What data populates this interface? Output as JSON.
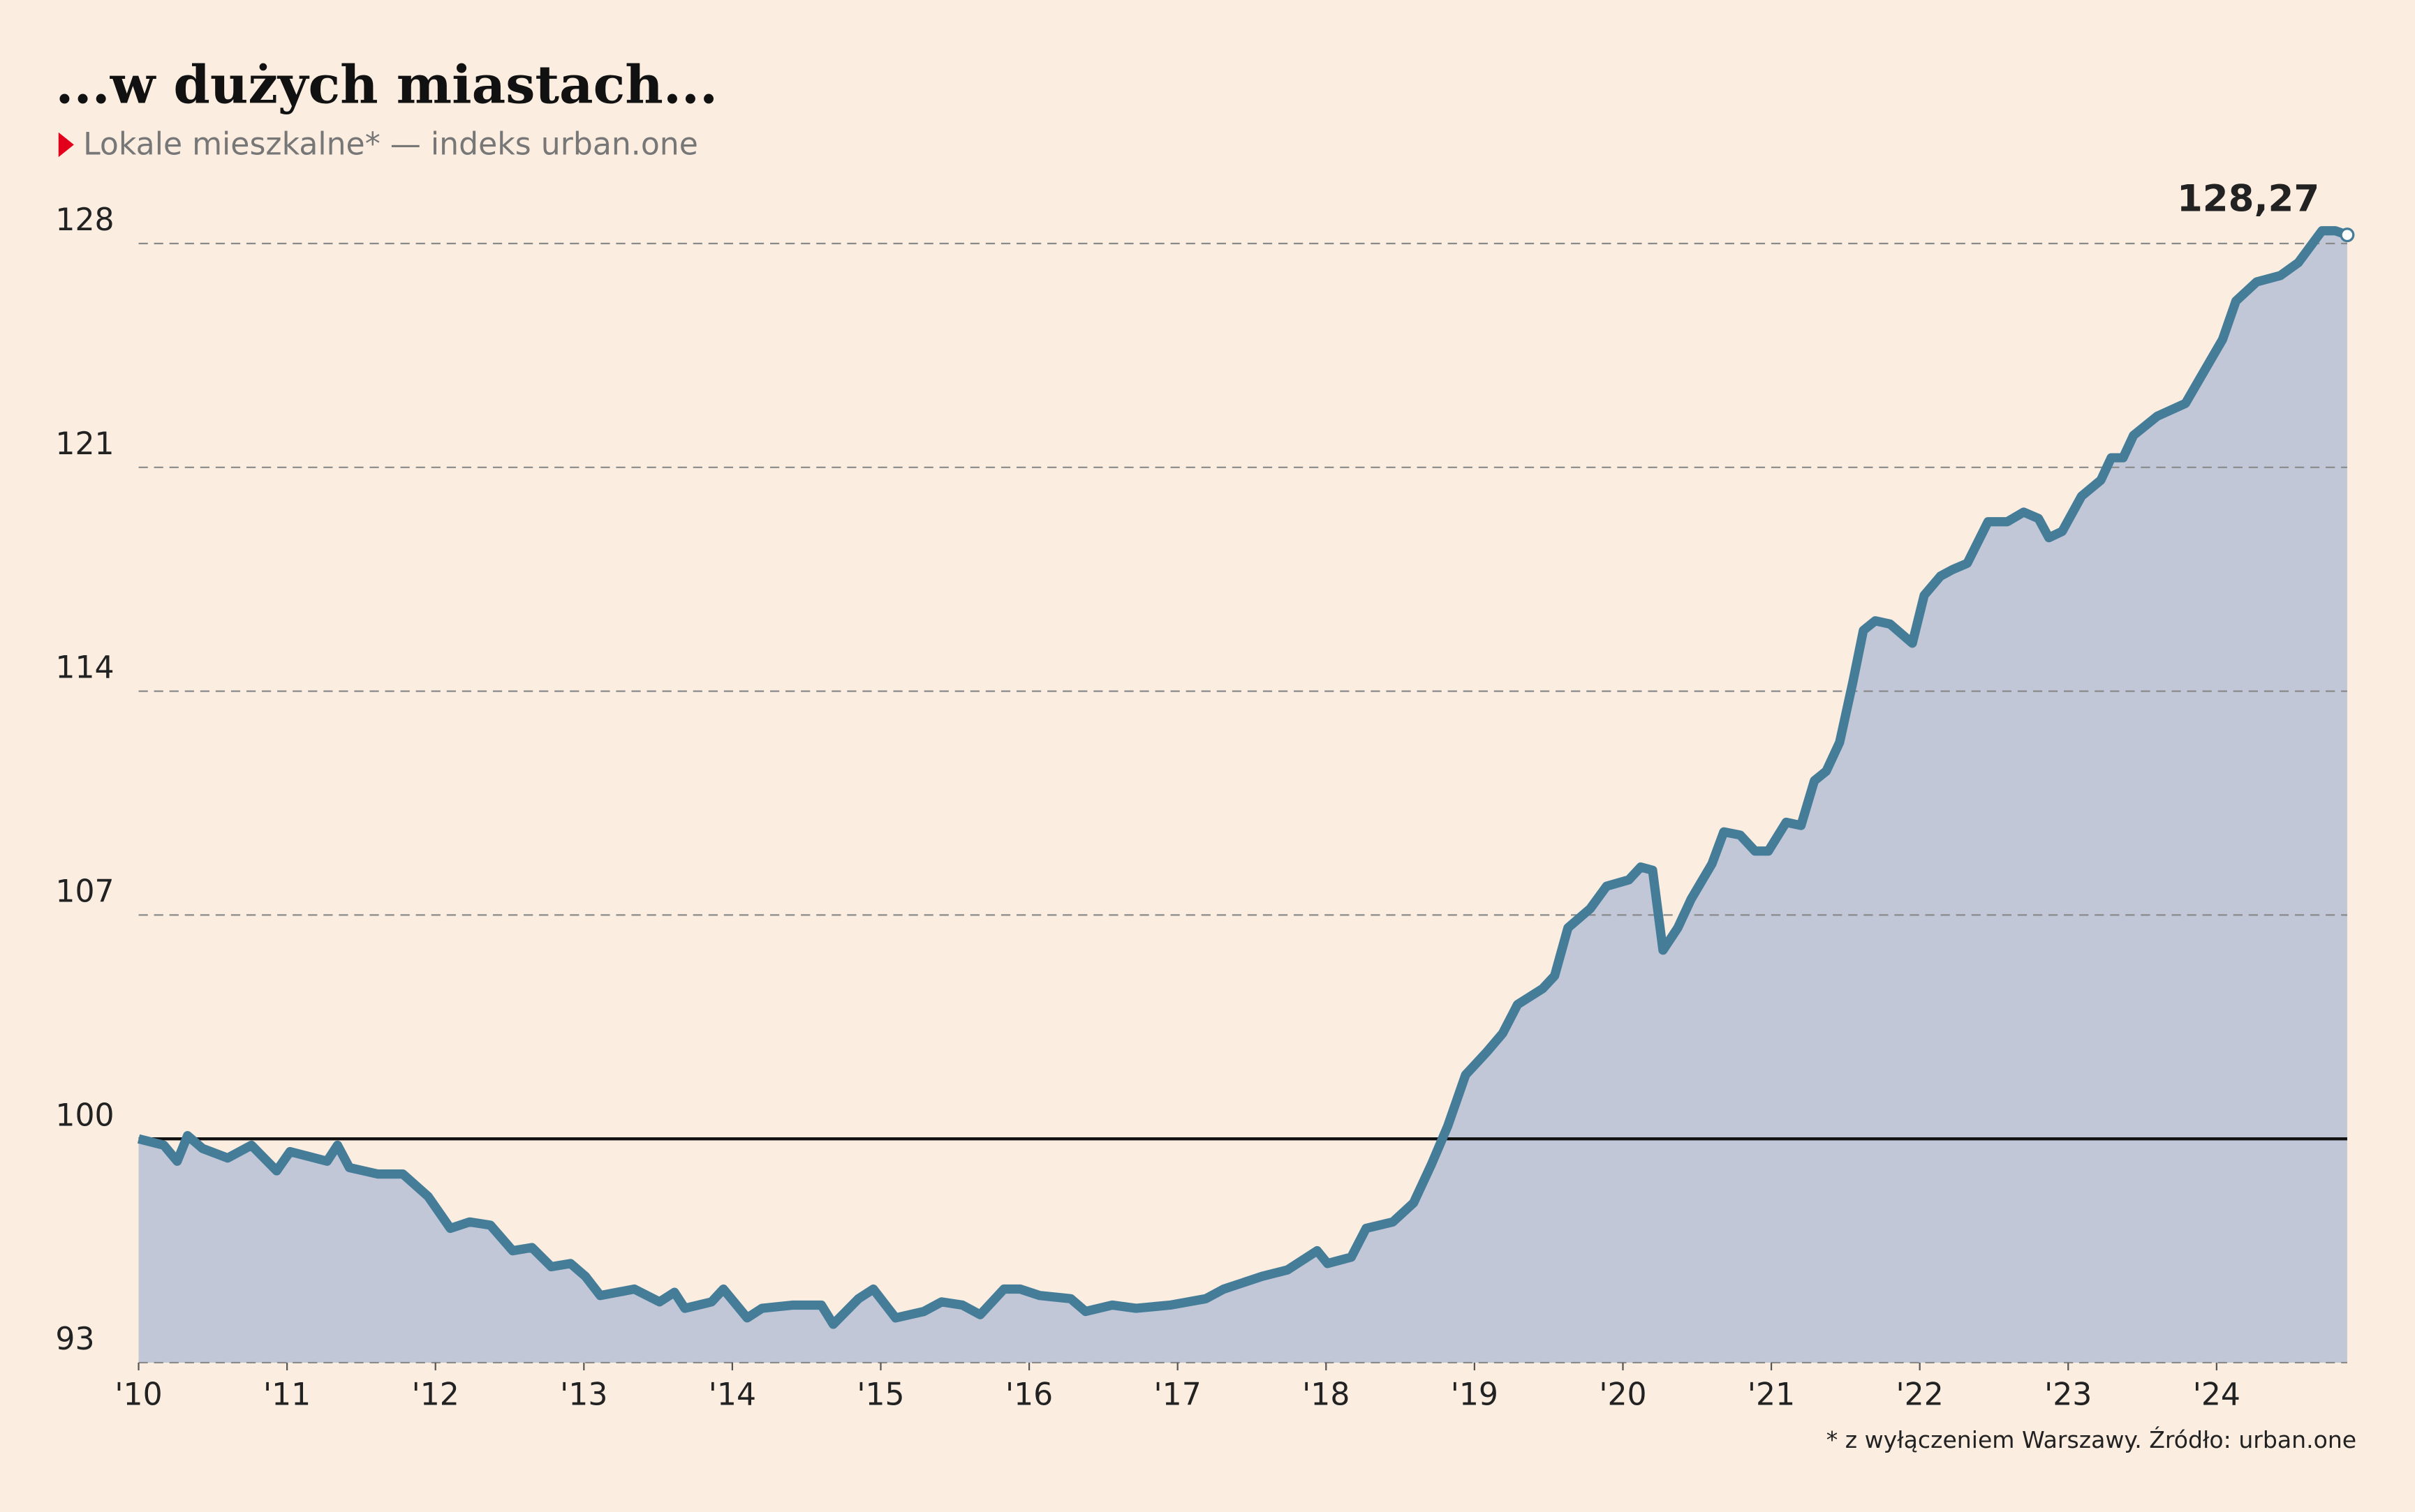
{
  "chart_data": {
    "type": "area-line",
    "title": "...w dużych miastach...",
    "subtitle": "Lokale mieszkalne* — indeks urban.one",
    "footnote": "* z wyłączeniem Warszawy. Źródło: urban.one",
    "color": "#457d99",
    "area_color": "#c2c7d8",
    "x": [
      2010.0,
      2010.17,
      2010.26,
      2010.33,
      2010.43,
      2010.6,
      2010.76,
      2010.93,
      2011.02,
      2011.27,
      2011.34,
      2011.42,
      2011.61,
      2011.78,
      2011.95,
      2012.1,
      2012.23,
      2012.37,
      2012.52,
      2012.65,
      2012.78,
      2012.91,
      2013.01,
      2013.11,
      2013.34,
      2013.51,
      2013.61,
      2013.68,
      2013.86,
      2013.94,
      2014.1,
      2014.2,
      2014.41,
      2014.6,
      2014.68,
      2014.85,
      2014.95,
      2015.1,
      2015.29,
      2015.41,
      2015.55,
      2015.67,
      2015.83,
      2015.94,
      2016.07,
      2016.28,
      2016.38,
      2016.56,
      2016.72,
      2016.95,
      2017.19,
      2017.31,
      2017.57,
      2017.74,
      2017.94,
      2018.01,
      2018.17,
      2018.27,
      2018.45,
      2018.59,
      2018.71,
      2018.82,
      2018.94,
      2019.08,
      2019.19,
      2019.29,
      2019.46,
      2019.54,
      2019.63,
      2019.78,
      2019.89,
      2020.04,
      2020.12,
      2020.2,
      2020.27,
      2020.37,
      2020.46,
      2020.6,
      2020.68,
      2020.79,
      2020.89,
      2020.98,
      2021.1,
      2021.2,
      2021.29,
      2021.37,
      2021.46,
      2021.55,
      2021.62,
      2021.7,
      2021.8,
      2021.95,
      2022.03,
      2022.14,
      2022.22,
      2022.32,
      2022.46,
      2022.59,
      2022.7,
      2022.8,
      2022.87,
      2022.96,
      2023.09,
      2023.22,
      2023.29,
      2023.37,
      2023.44,
      2023.6,
      2023.79,
      2023.89,
      2024.04,
      2024.13,
      2024.27,
      2024.43,
      2024.55,
      2024.71,
      2024.8,
      2024.88
    ],
    "values": [
      100.0,
      99.8,
      99.3,
      100.1,
      99.7,
      99.4,
      99.8,
      99.0,
      99.6,
      99.3,
      99.8,
      99.1,
      98.9,
      98.9,
      98.2,
      97.2,
      97.4,
      97.3,
      96.5,
      96.6,
      96.0,
      96.1,
      95.7,
      95.1,
      95.3,
      94.9,
      95.2,
      94.7,
      94.9,
      95.3,
      94.4,
      94.7,
      94.8,
      94.8,
      94.2,
      95.0,
      95.3,
      94.4,
      94.6,
      94.9,
      94.8,
      94.5,
      95.3,
      95.3,
      95.1,
      95.0,
      94.6,
      94.8,
      94.7,
      94.8,
      95.0,
      95.3,
      95.7,
      95.9,
      96.5,
      96.1,
      96.3,
      97.2,
      97.4,
      98.0,
      99.2,
      100.4,
      102.0,
      102.7,
      103.3,
      104.2,
      104.7,
      105.1,
      106.6,
      107.2,
      107.9,
      108.1,
      108.5,
      108.4,
      105.9,
      106.6,
      107.5,
      108.6,
      109.6,
      109.5,
      109.0,
      109.0,
      109.9,
      109.8,
      111.2,
      111.5,
      112.4,
      114.3,
      115.9,
      116.2,
      116.1,
      115.5,
      117.0,
      117.6,
      117.8,
      118.0,
      119.3,
      119.3,
      119.6,
      119.4,
      118.8,
      119.0,
      120.1,
      120.6,
      121.3,
      121.3,
      122.0,
      122.6,
      123.0,
      123.8,
      125.0,
      126.2,
      126.8,
      127.0,
      127.4,
      128.4,
      128.4,
      128.27
    ],
    "value_labels": [
      null,
      null,
      null,
      null,
      null,
      null,
      null,
      null,
      null,
      null,
      null,
      null,
      null,
      null,
      null,
      null,
      null,
      null,
      null,
      null,
      null,
      null,
      null,
      null,
      null,
      null,
      null,
      null,
      null,
      null,
      null,
      null,
      null,
      null,
      null,
      null,
      null,
      null,
      null,
      null,
      null,
      null,
      null,
      null,
      null,
      null,
      null,
      null,
      null,
      null,
      null,
      null,
      null,
      null,
      null,
      null,
      null,
      null,
      null,
      null,
      null,
      null,
      null,
      null,
      null,
      null,
      null,
      null,
      null,
      null,
      null,
      null,
      null,
      null,
      null,
      null,
      null,
      null,
      null,
      null,
      null,
      null,
      null,
      null,
      null,
      null,
      null,
      null,
      null,
      null,
      null,
      null,
      null,
      null,
      null,
      null,
      null,
      null,
      null,
      null,
      null,
      null,
      null,
      null,
      null,
      null,
      null,
      null,
      null,
      null,
      null,
      null,
      null,
      null,
      null,
      null,
      null,
      "128,27"
    ],
    "xlim": [
      2010,
      2024.88
    ],
    "xticks": [
      {
        "value": 2010,
        "label": "'10"
      },
      {
        "value": 2011,
        "label": "'11"
      },
      {
        "value": 2012,
        "label": "'12"
      },
      {
        "value": 2013,
        "label": "'13"
      },
      {
        "value": 2014,
        "label": "'14"
      },
      {
        "value": 2015,
        "label": "'15"
      },
      {
        "value": 2016,
        "label": "'16"
      },
      {
        "value": 2017,
        "label": "'17"
      },
      {
        "value": 2018,
        "label": "'18"
      },
      {
        "value": 2019,
        "label": "'19"
      },
      {
        "value": 2020,
        "label": "'20"
      },
      {
        "value": 2021,
        "label": "'21"
      },
      {
        "value": 2022,
        "label": "'22"
      },
      {
        "value": 2023,
        "label": "'23"
      },
      {
        "value": 2024,
        "label": "'24"
      }
    ],
    "ylim": [
      93,
      129
    ],
    "yticks": [
      93,
      100,
      107,
      114,
      121,
      128
    ],
    "baseline": 100,
    "grid": true
  }
}
